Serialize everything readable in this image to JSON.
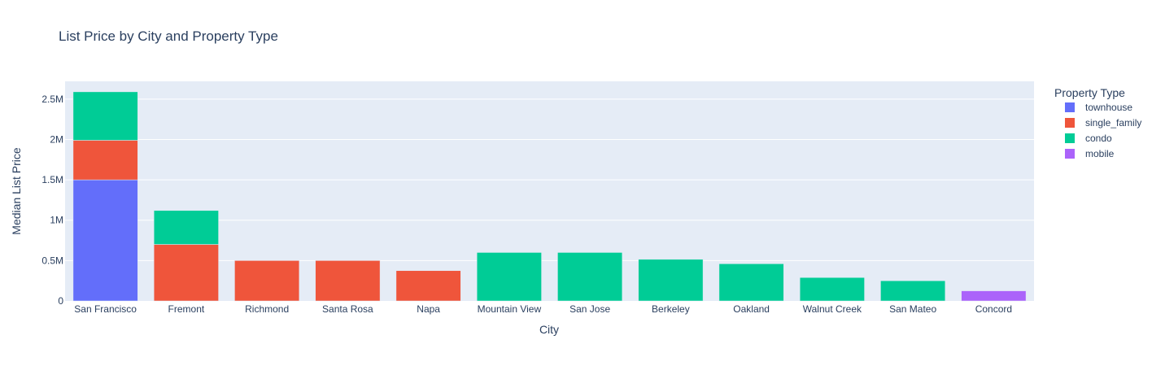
{
  "chart_data": {
    "type": "bar",
    "barmode": "stack",
    "title": "List Price by City and Property Type",
    "xlabel": "City",
    "ylabel": "Median List Price",
    "ylim": [
      0,
      2720000
    ],
    "yticks": [
      {
        "value": 0,
        "label": "0"
      },
      {
        "value": 500000,
        "label": "0.5M"
      },
      {
        "value": 1000000,
        "label": "1M"
      },
      {
        "value": 1500000,
        "label": "1.5M"
      },
      {
        "value": 2000000,
        "label": "2M"
      },
      {
        "value": 2500000,
        "label": "2.5M"
      }
    ],
    "grid": true,
    "legend_title": "Property Type",
    "legend_position": "right",
    "categories": [
      "San Francisco",
      "Fremont",
      "Richmond",
      "Santa Rosa",
      "Napa",
      "Mountain View",
      "San Jose",
      "Berkeley",
      "Oakland",
      "Walnut Creek",
      "San Mateo",
      "Concord"
    ],
    "series": [
      {
        "name": "townhouse",
        "color": "#636efa",
        "values": [
          1500000,
          0,
          0,
          0,
          0,
          0,
          0,
          0,
          0,
          0,
          0,
          0
        ]
      },
      {
        "name": "single_family",
        "color": "#ef553b",
        "values": [
          490000,
          700000,
          500000,
          500000,
          375000,
          0,
          0,
          0,
          0,
          0,
          0,
          0
        ]
      },
      {
        "name": "condo",
        "color": "#00cc96",
        "values": [
          600000,
          420000,
          0,
          0,
          0,
          600000,
          600000,
          515000,
          460000,
          290000,
          250000,
          0
        ]
      },
      {
        "name": "mobile",
        "color": "#ab63fa",
        "values": [
          0,
          0,
          0,
          0,
          0,
          0,
          0,
          0,
          0,
          0,
          0,
          125000
        ]
      }
    ]
  }
}
